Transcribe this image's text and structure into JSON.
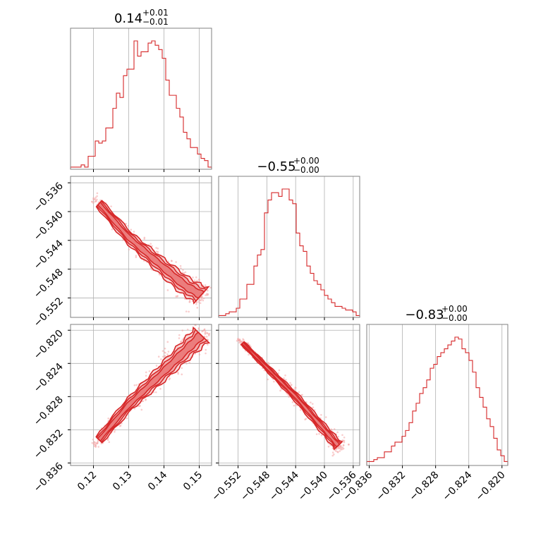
{
  "colors": {
    "main": "#d62728",
    "light": "#f4a6a6",
    "grid": "#b0b0b0",
    "frame": "#808080"
  },
  "titles": [
    {
      "main": "0.14",
      "sup": "+0.01",
      "sub": "−0.01"
    },
    {
      "main": "−0.55",
      "sup": "+0.00",
      "sub": "−0.00"
    },
    {
      "main": "−0.83",
      "sup": "+0.00",
      "sub": "−0.00"
    }
  ],
  "chart_data": {
    "type": "corner",
    "params": [
      {
        "range": [
          0.1135,
          0.1535
        ],
        "ticks": [
          0.12,
          0.13,
          0.14,
          0.15
        ],
        "tick_labels": [
          "0.12",
          "0.13",
          "0.14",
          "0.15"
        ]
      },
      {
        "range": [
          -0.5547,
          -0.5351
        ],
        "ticks": [
          -0.552,
          -0.548,
          -0.544,
          -0.54,
          -0.536
        ],
        "tick_labels": [
          "−0.552",
          "−0.548",
          "−0.544",
          "−0.540",
          "−0.536"
        ]
      },
      {
        "range": [
          -0.8363,
          -0.8193
        ],
        "ticks": [
          -0.836,
          -0.832,
          -0.828,
          -0.824,
          -0.82
        ],
        "tick_labels": [
          "−0.836",
          "−0.832",
          "−0.828",
          "−0.824",
          "−0.820"
        ]
      }
    ],
    "histograms": [
      {
        "param": 0,
        "bins": 40,
        "counts": [
          1,
          1,
          1,
          2,
          1,
          6,
          6,
          13,
          12,
          13,
          19,
          19,
          28,
          35,
          33,
          43,
          46,
          46,
          59,
          52,
          54,
          54,
          58,
          59,
          57,
          55,
          51,
          41,
          34,
          34,
          28,
          24,
          17,
          14,
          10,
          10,
          7,
          5,
          4,
          1
        ]
      },
      {
        "param": 1,
        "bins": 40,
        "counts": [
          1,
          1,
          2,
          3,
          3,
          5,
          10,
          10,
          18,
          18,
          28,
          34,
          37,
          57,
          64,
          68,
          68,
          66,
          70,
          70,
          64,
          62,
          46,
          39,
          36,
          28,
          24,
          20,
          18,
          15,
          12,
          10,
          8,
          6,
          6,
          5,
          4,
          4,
          3,
          1
        ]
      },
      {
        "param": 2,
        "bins": 40,
        "counts": [
          2,
          2,
          3,
          4,
          4,
          7,
          7,
          10,
          12,
          12,
          15,
          18,
          22,
          28,
          32,
          37,
          40,
          44,
          50,
          52,
          56,
          58,
          60,
          62,
          64,
          66,
          65,
          60,
          58,
          54,
          48,
          40,
          35,
          30,
          24,
          20,
          14,
          8,
          5,
          2
        ]
      }
    ],
    "pairs": [
      {
        "x_param": 0,
        "y_param": 1,
        "relation": "negative",
        "samples_x": [
          0.12,
          0.13,
          0.138,
          0.146,
          0.152
        ],
        "samples_y": [
          -0.538,
          -0.5436,
          -0.547,
          -0.5503,
          -0.552
        ]
      },
      {
        "x_param": 0,
        "y_param": 2,
        "relation": "positive",
        "samples_x": [
          0.12,
          0.13,
          0.138,
          0.146,
          0.152
        ],
        "samples_y": [
          -0.834,
          -0.829,
          -0.8258,
          -0.8225,
          -0.82
        ]
      },
      {
        "x_param": 1,
        "y_param": 2,
        "relation": "negative",
        "samples_x": [
          -0.552,
          -0.548,
          -0.544,
          -0.54,
          -0.5375
        ],
        "samples_y": [
          -0.821,
          -0.8245,
          -0.828,
          -0.832,
          -0.8345
        ]
      }
    ]
  }
}
